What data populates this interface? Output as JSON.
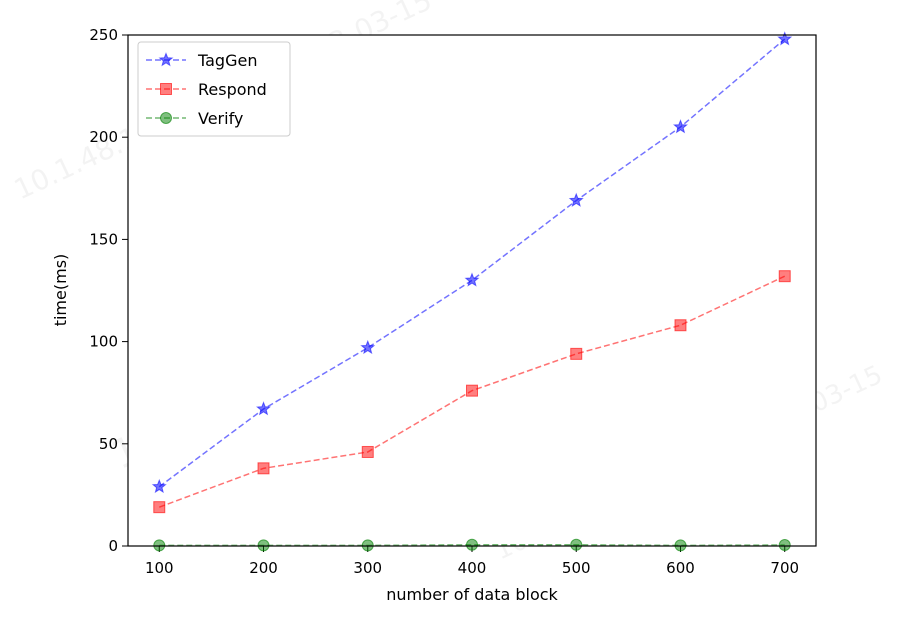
{
  "chart_data": {
    "type": "line",
    "title": "",
    "xlabel": "number of data block",
    "ylabel": "time(ms)",
    "x": [
      100,
      200,
      300,
      400,
      500,
      600,
      700
    ],
    "xlim": [
      70,
      730
    ],
    "ylim": [
      0,
      250
    ],
    "xticks": [
      "100",
      "200",
      "300",
      "400",
      "500",
      "600",
      "700"
    ],
    "yticks": [
      "0",
      "50",
      "100",
      "150",
      "200",
      "250"
    ],
    "grid": false,
    "legend_position": "upper-left",
    "series": [
      {
        "name": "TagGen",
        "values": [
          29,
          67,
          97,
          130,
          169,
          205,
          248
        ],
        "color": "#0000ff",
        "marker": "star",
        "line_style": "dashed"
      },
      {
        "name": "Respond",
        "values": [
          19,
          38,
          46,
          76,
          94,
          108,
          132
        ],
        "color": "#ff0000",
        "marker": "square",
        "line_style": "dashed"
      },
      {
        "name": "Verify",
        "values": [
          0.3,
          0.3,
          0.3,
          0.6,
          0.6,
          0.3,
          0.5
        ],
        "color": "#008000",
        "marker": "circle",
        "line_style": "dashed"
      }
    ]
  }
}
